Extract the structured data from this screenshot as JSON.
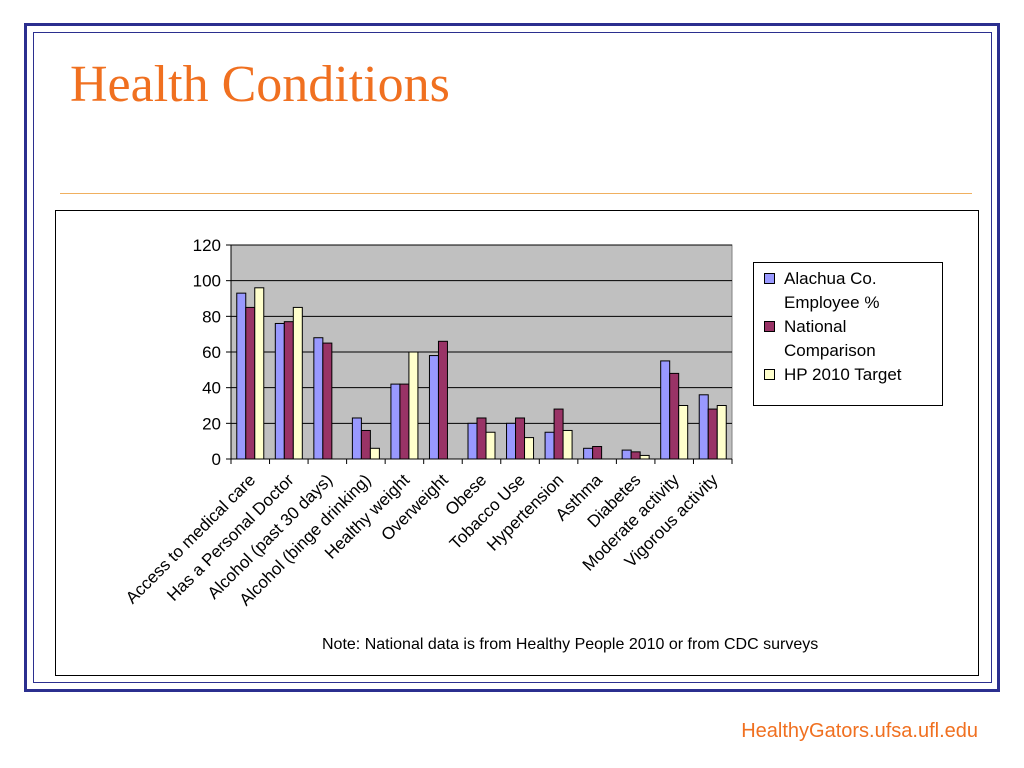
{
  "slide": {
    "title": "Health Conditions",
    "note": "Note: National data is from Healthy People 2010 or from CDC surveys",
    "footer": "HealthyGators.ufsa.ufl.edu",
    "title_color": "#f07020",
    "frame_color": "#2b2f8f"
  },
  "chart_data": {
    "type": "bar",
    "title": "",
    "xlabel": "",
    "ylabel": "",
    "ylim": [
      0,
      120
    ],
    "yticks": [
      "0",
      "20",
      "40",
      "60",
      "80",
      "100",
      "120"
    ],
    "grid": true,
    "legend_position": "right",
    "plot_background": "#c0c0c0",
    "categories": [
      "Access to medical care",
      "Has a Personal Doctor",
      "Alcohol (past 30 days)",
      "Alcohol  (binge drinking)",
      "Healthy weight",
      "Overweight",
      "Obese",
      "Tobacco Use",
      "Hypertension",
      "Asthma",
      "Diabetes",
      "Moderate activity",
      "Vigorous activity"
    ],
    "series": [
      {
        "name": "Alachua Co. Employee %",
        "color": "#9999ff",
        "values": [
          93,
          76,
          68,
          23,
          42,
          58,
          20,
          20,
          15,
          6,
          5,
          55,
          36
        ]
      },
      {
        "name": "National Comparison",
        "color": "#993366",
        "values": [
          85,
          77,
          65,
          16,
          42,
          66,
          23,
          23,
          28,
          7,
          4,
          48,
          28
        ]
      },
      {
        "name": "HP 2010 Target",
        "color": "#ffffcc",
        "values": [
          96,
          85,
          null,
          6,
          60,
          null,
          15,
          12,
          16,
          null,
          2,
          30,
          30
        ]
      }
    ]
  }
}
